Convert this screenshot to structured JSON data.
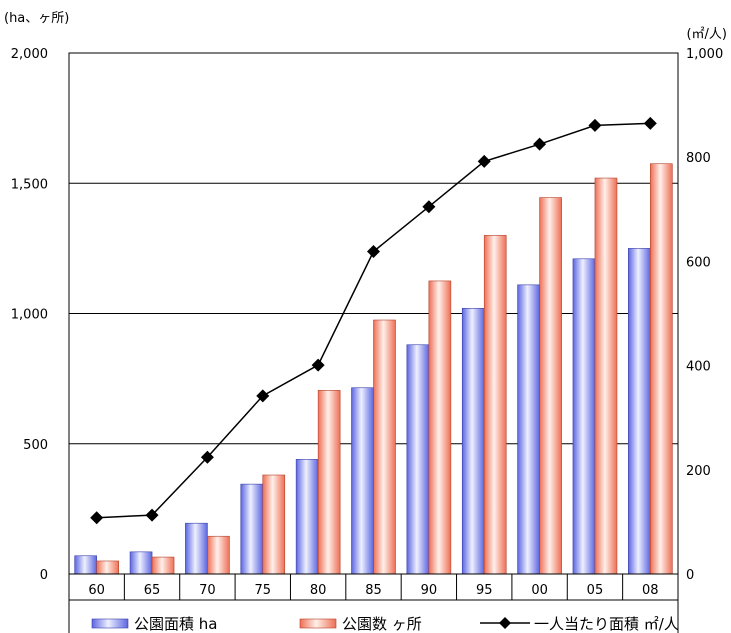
{
  "chart_data": {
    "type": "bar",
    "categories": [
      "60",
      "65",
      "70",
      "75",
      "80",
      "85",
      "90",
      "95",
      "00",
      "05",
      "08"
    ],
    "left_axis": {
      "unit_label": "(ha、ヶ所)",
      "ylim": [
        0,
        2000
      ],
      "ticks": [
        {
          "value": 0,
          "label": "0"
        },
        {
          "value": 500,
          "label": "500"
        },
        {
          "value": 1000,
          "label": "1,000"
        },
        {
          "value": 1500,
          "label": "1,500"
        },
        {
          "value": 2000,
          "label": "2,000"
        }
      ]
    },
    "right_axis": {
      "unit_label": "(㎡/人)",
      "ylim": [
        0,
        1000
      ],
      "ticks": [
        {
          "value": 0,
          "label": "0"
        },
        {
          "value": 200,
          "label": "200"
        },
        {
          "value": 400,
          "label": "400"
        },
        {
          "value": 600,
          "label": "600"
        },
        {
          "value": 800,
          "label": "800"
        },
        {
          "value": 1000,
          "label": "1,000"
        }
      ]
    },
    "series": [
      {
        "name": "公園面積 ha",
        "kind": "bar",
        "axis": "left",
        "color": "#7d86e8",
        "values": [
          70,
          85,
          195,
          345,
          440,
          715,
          880,
          1020,
          1110,
          1210,
          1250
        ]
      },
      {
        "name": "公園数 ヶ所",
        "kind": "bar",
        "axis": "left",
        "color": "#ef8a74",
        "values": [
          50,
          65,
          145,
          380,
          705,
          975,
          1125,
          1300,
          1445,
          1520,
          1575
        ]
      },
      {
        "name": "一人当たり面積 ㎡/人",
        "kind": "line",
        "axis": "right",
        "color": "#000000",
        "values": [
          108,
          113,
          224,
          342,
          401,
          619,
          705,
          792,
          825,
          861,
          865
        ]
      }
    ],
    "grid": true,
    "legend_position": "bottom"
  }
}
